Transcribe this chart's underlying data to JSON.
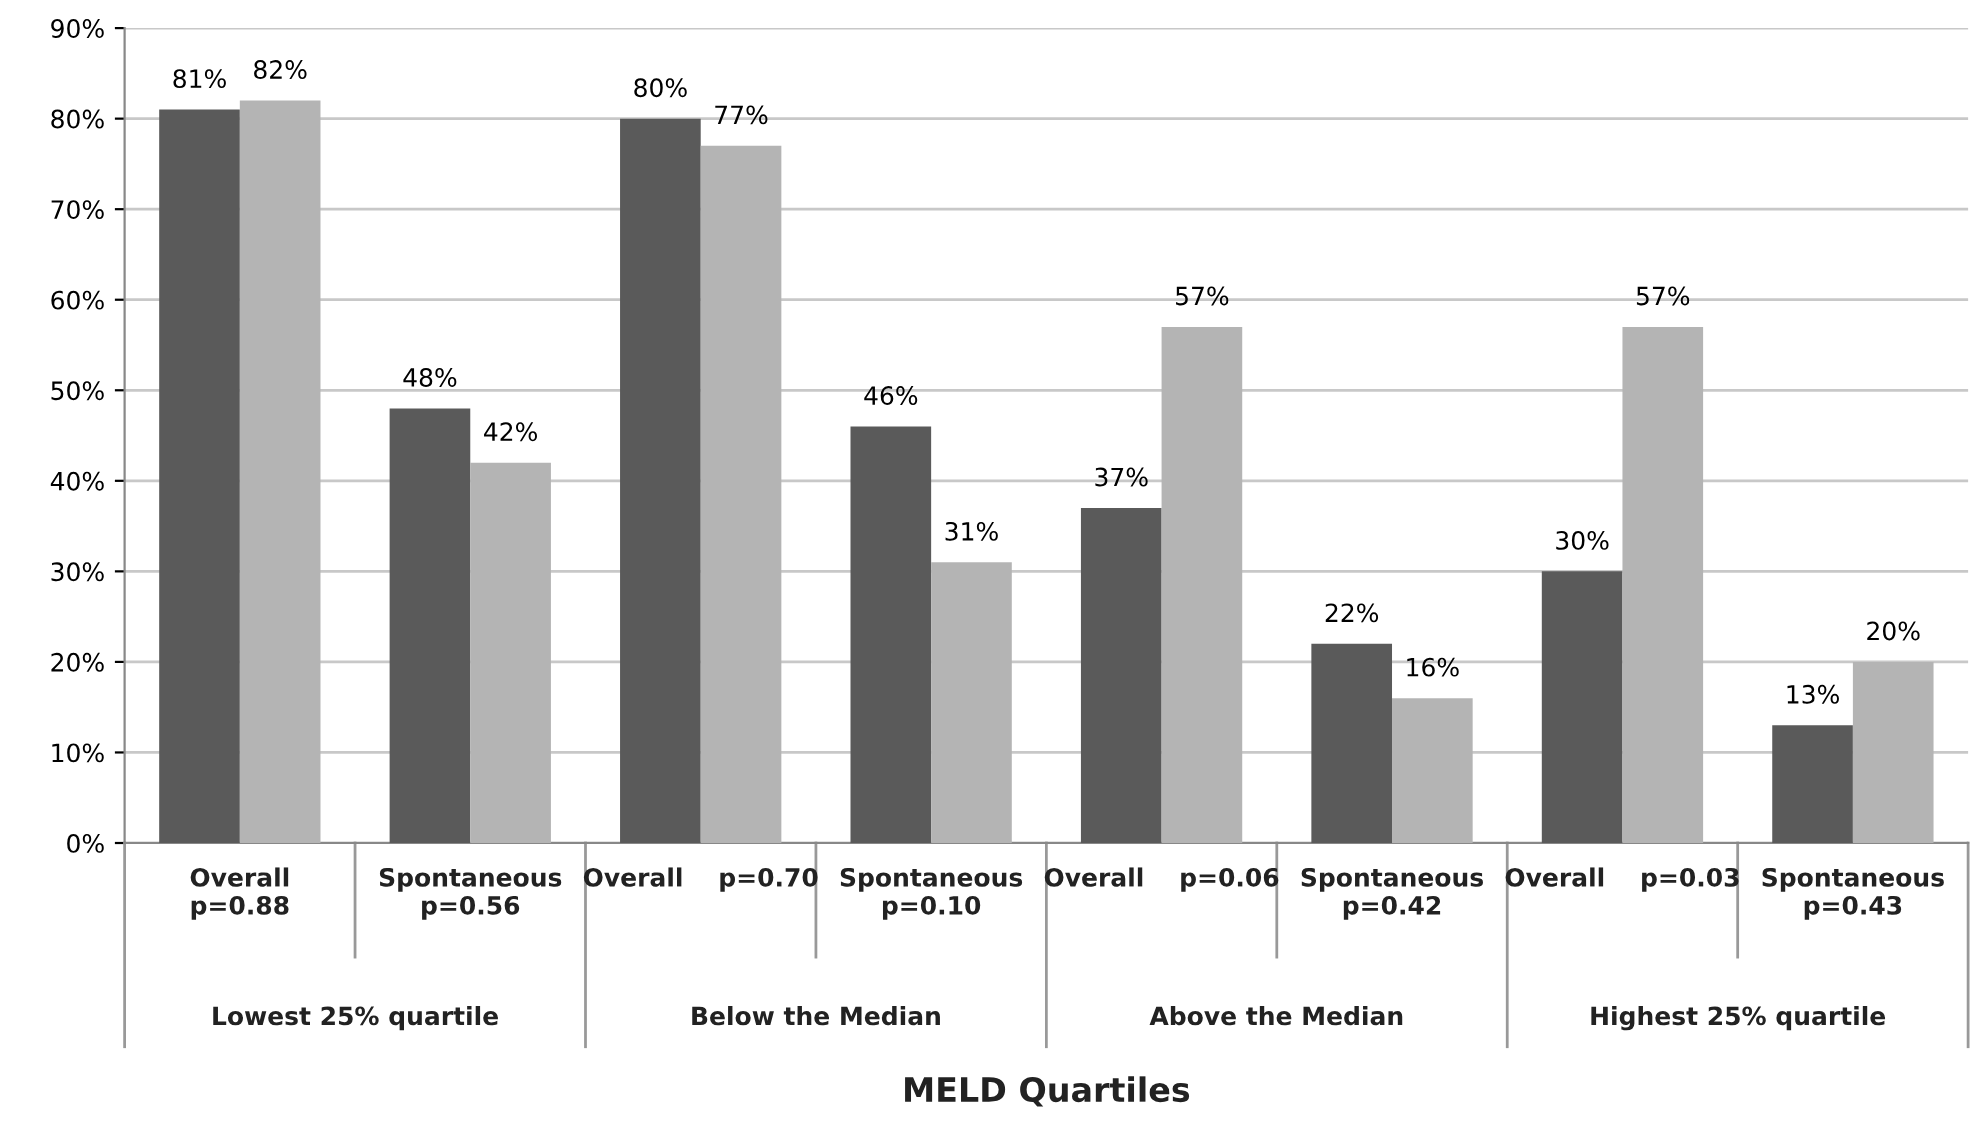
{
  "chart_data": {
    "type": "bar",
    "categories": [
      "Overall\np=0.88",
      "Spontaneous\np=0.56",
      "Overall    p=0.70",
      "Spontaneous\np=0.10",
      "Overall    p=0.06",
      "Spontaneous\np=0.42",
      "Overall    p=0.03",
      "Spontaneous\np=0.43"
    ],
    "series": [
      {
        "color": "#5a5a5a",
        "values": [
          81,
          48,
          80,
          46,
          37,
          22,
          30,
          13
        ],
        "value_labels": [
          "81%",
          "48%",
          "80%",
          "46%",
          "37%",
          "22%",
          "30%",
          "13%"
        ]
      },
      {
        "color": "#b4b4b4",
        "values": [
          82,
          42,
          77,
          31,
          57,
          16,
          57,
          20
        ],
        "value_labels": [
          "82%",
          "42%",
          "77%",
          "31%",
          "57%",
          "16%",
          "57%",
          "20%"
        ]
      }
    ],
    "annotations": [
      "Lowest 25% quartile",
      "Below the Median",
      "Above the Median",
      "Highest 25% quartile"
    ],
    "xlabel": "MELD Quartiles",
    "ylim": [
      0,
      90
    ],
    "yticks": [
      {
        "value": 0,
        "label": "0%"
      },
      {
        "value": 10,
        "label": "10%"
      },
      {
        "value": 20,
        "label": "20%"
      },
      {
        "value": 30,
        "label": "30%"
      },
      {
        "value": 40,
        "label": "40%"
      },
      {
        "value": 50,
        "label": "50%"
      },
      {
        "value": 60,
        "label": "60%"
      },
      {
        "value": 70,
        "label": "70%"
      },
      {
        "value": 80,
        "label": "80%"
      },
      {
        "value": 90,
        "label": "90%"
      }
    ],
    "grid": "y",
    "legend": false
  }
}
